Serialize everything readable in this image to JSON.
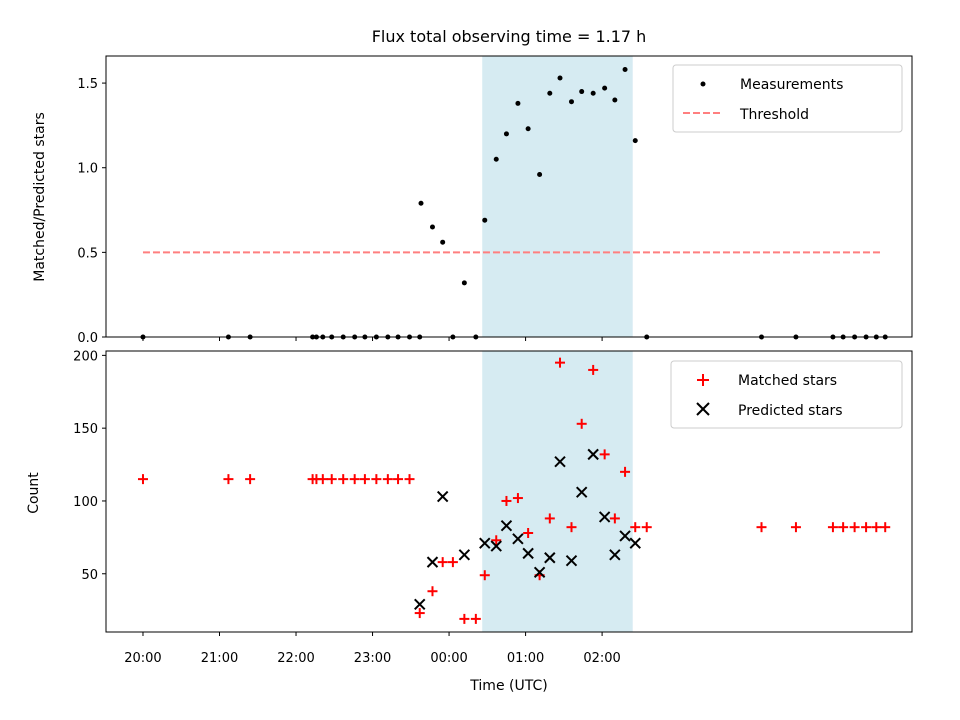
{
  "title": "Flux total observing time = 1.17 h",
  "x_tick_labels": [
    "20:00",
    "21:00",
    "22:00",
    "23:00",
    "00:00",
    "01:00",
    "02:00"
  ],
  "colors": {
    "measurement": "#000000",
    "threshold": "#ff7f7f",
    "matched": "#ff0000",
    "predicted": "#000000",
    "shade": "#add8e6"
  },
  "chart_data": [
    {
      "type": "scatter",
      "panel": "top",
      "ylabel": "Matched/Predicted stars",
      "ylim": [
        0,
        1.66
      ],
      "y_ticks": [
        "0.0",
        "0.5",
        "1.0",
        "1.5"
      ],
      "xlabel": "",
      "x_unit": "minutes after 20:00 UTC",
      "xlim": [
        -29,
        603
      ],
      "shaded_region": [
        266,
        384
      ],
      "legend": {
        "position": "upper right",
        "entries": [
          "Measurements",
          "Threshold"
        ]
      },
      "threshold": {
        "name": "Threshold",
        "value": 0.5,
        "x_range": [
          0,
          580
        ]
      },
      "series": [
        {
          "name": "Measurements",
          "points": [
            [
              0,
              0
            ],
            [
              67,
              0
            ],
            [
              84,
              0
            ],
            [
              133,
              0
            ],
            [
              136,
              0
            ],
            [
              141,
              0
            ],
            [
              148,
              0
            ],
            [
              157,
              0
            ],
            [
              166,
              0
            ],
            [
              174,
              0
            ],
            [
              183,
              0
            ],
            [
              192,
              0
            ],
            [
              200,
              0
            ],
            [
              209,
              0
            ],
            [
              217,
              0
            ],
            [
              243,
              0
            ],
            [
              261,
              0
            ],
            [
              218,
              0.79
            ],
            [
              227,
              0.65
            ],
            [
              235,
              0.56
            ],
            [
              252,
              0.32
            ],
            [
              268,
              0.69
            ],
            [
              277,
              1.05
            ],
            [
              285,
              1.2
            ],
            [
              294,
              1.38
            ],
            [
              302,
              1.23
            ],
            [
              311,
              0.96
            ],
            [
              319,
              1.44
            ],
            [
              327,
              1.53
            ],
            [
              336,
              1.39
            ],
            [
              344,
              1.45
            ],
            [
              353,
              1.44
            ],
            [
              362,
              1.47
            ],
            [
              370,
              1.4
            ],
            [
              378,
              1.58
            ],
            [
              386,
              1.16
            ],
            [
              395,
              0
            ],
            [
              485,
              0
            ],
            [
              512,
              0
            ],
            [
              541,
              0
            ],
            [
              549,
              0
            ],
            [
              558,
              0
            ],
            [
              567,
              0
            ],
            [
              575,
              0
            ],
            [
              582,
              0
            ]
          ]
        }
      ]
    },
    {
      "type": "scatter",
      "panel": "bottom",
      "ylabel": "Count",
      "xlabel": "Time (UTC)",
      "ylim": [
        10,
        203
      ],
      "y_ticks": [
        "50",
        "100",
        "150",
        "200"
      ],
      "x_unit": "minutes after 20:00 UTC",
      "xlim": [
        -29,
        603
      ],
      "shaded_region": [
        266,
        384
      ],
      "legend": {
        "position": "upper right",
        "entries": [
          "Matched stars",
          "Predicted stars"
        ]
      },
      "series": [
        {
          "name": "Matched stars",
          "marker": "+",
          "points": [
            [
              0,
              115
            ],
            [
              67,
              115
            ],
            [
              84,
              115
            ],
            [
              133,
              115
            ],
            [
              136,
              115
            ],
            [
              141,
              115
            ],
            [
              148,
              115
            ],
            [
              157,
              115
            ],
            [
              166,
              115
            ],
            [
              174,
              115
            ],
            [
              183,
              115
            ],
            [
              192,
              115
            ],
            [
              200,
              115
            ],
            [
              209,
              115
            ],
            [
              217,
              23
            ],
            [
              227,
              38
            ],
            [
              235,
              58
            ],
            [
              243,
              58
            ],
            [
              252,
              19
            ],
            [
              261,
              19
            ],
            [
              268,
              49
            ],
            [
              277,
              73
            ],
            [
              285,
              100
            ],
            [
              294,
              102
            ],
            [
              302,
              78
            ],
            [
              311,
              49
            ],
            [
              319,
              88
            ],
            [
              327,
              195
            ],
            [
              336,
              82
            ],
            [
              344,
              153
            ],
            [
              353,
              190
            ],
            [
              362,
              132
            ],
            [
              370,
              88
            ],
            [
              378,
              120
            ],
            [
              386,
              82
            ],
            [
              395,
              82
            ],
            [
              485,
              82
            ],
            [
              512,
              82
            ],
            [
              541,
              82
            ],
            [
              549,
              82
            ],
            [
              558,
              82
            ],
            [
              567,
              82
            ],
            [
              575,
              82
            ],
            [
              582,
              82
            ]
          ]
        },
        {
          "name": "Predicted stars",
          "marker": "x",
          "points": [
            [
              217,
              29
            ],
            [
              227,
              58
            ],
            [
              235,
              103
            ],
            [
              252,
              63
            ],
            [
              268,
              71
            ],
            [
              277,
              69
            ],
            [
              285,
              83
            ],
            [
              294,
              74
            ],
            [
              302,
              64
            ],
            [
              311,
              51
            ],
            [
              319,
              61
            ],
            [
              327,
              127
            ],
            [
              336,
              59
            ],
            [
              344,
              106
            ],
            [
              353,
              132
            ],
            [
              362,
              89
            ],
            [
              370,
              63
            ],
            [
              378,
              76
            ],
            [
              386,
              71
            ]
          ]
        }
      ]
    }
  ]
}
